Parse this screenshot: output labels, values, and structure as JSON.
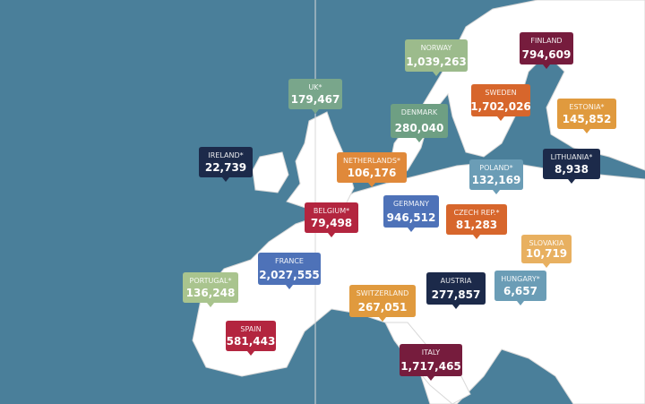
{
  "countries": [
    {
      "name": "NORWAY",
      "value": "1,039,263",
      "color": "#9cbb8c"
    },
    {
      "name": "FINLAND",
      "value": "794,609",
      "color": "#761c3d"
    },
    {
      "name": "UK*",
      "value": "179,467",
      "color": "#79a68b"
    },
    {
      "name": "SWEDEN",
      "value": "1,702,026",
      "color": "#d7662c"
    },
    {
      "name": "DENMARK",
      "value": "280,040",
      "color": "#6e9f83"
    },
    {
      "name": "ESTONIA*",
      "value": "145,852",
      "color": "#e09a3e"
    },
    {
      "name": "IRELAND*",
      "value": "22,739",
      "color": "#1c2a4a"
    },
    {
      "name": "NETHERLANDS*",
      "value": "106,176",
      "color": "#e0893a"
    },
    {
      "name": "POLAND*",
      "value": "132,169",
      "color": "#6b9db6"
    },
    {
      "name": "LITHUANIA*",
      "value": "8,938",
      "color": "#1c2a4a"
    },
    {
      "name": "BELGIUM*",
      "value": "79,498",
      "color": "#b3253f"
    },
    {
      "name": "GERMANY",
      "value": "946,512",
      "color": "#4e72b8"
    },
    {
      "name": "CZECH REP.*",
      "value": "81,283",
      "color": "#d7662c"
    },
    {
      "name": "SLOVAKIA",
      "value": "10,719",
      "color": "#e8b060"
    },
    {
      "name": "FRANCE",
      "value": "2,027,555",
      "color": "#4e72b8"
    },
    {
      "name": "PORTUGAL*",
      "value": "136,248",
      "color": "#a9c48e"
    },
    {
      "name": "SWITZERLAND",
      "value": "267,051",
      "color": "#e09a3e"
    },
    {
      "name": "AUSTRIA",
      "value": "277,857",
      "color": "#1c2a4a"
    },
    {
      "name": "HUNGARY*",
      "value": "6,657",
      "color": "#6b9db6"
    },
    {
      "name": "SPAIN",
      "value": "581,443",
      "color": "#b3253f"
    },
    {
      "name": "ITALY",
      "value": "1,717,465",
      "color": "#761c3d"
    }
  ]
}
